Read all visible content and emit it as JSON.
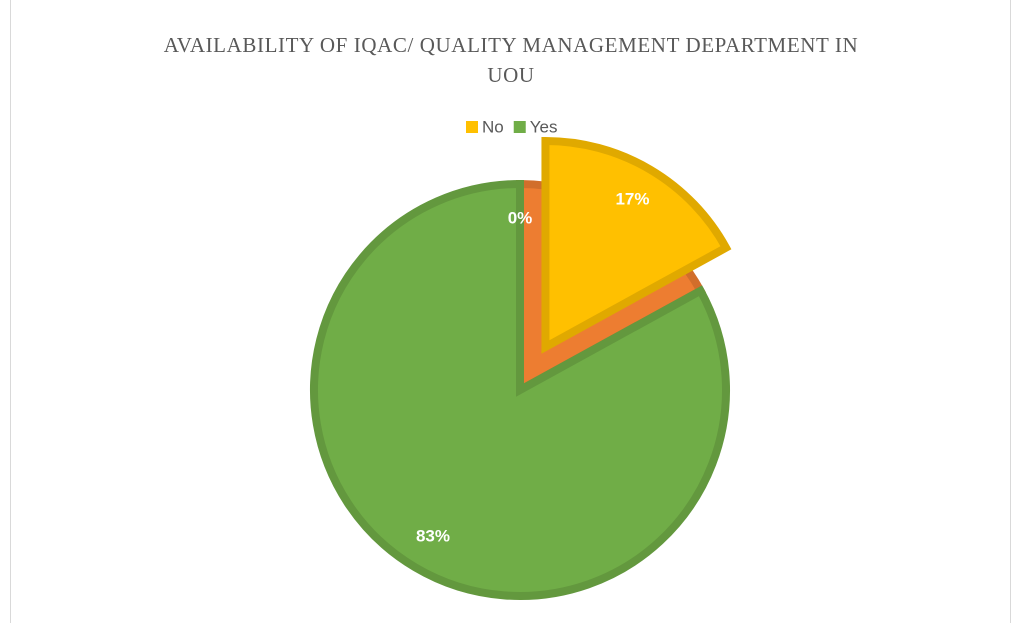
{
  "chart_data": {
    "type": "pie",
    "title": "AVAILABILITY OF IQAC/ QUALITY MANAGEMENT DEPARTMENT IN UOU",
    "categories": [
      "No",
      "Yes",
      null
    ],
    "values": [
      17,
      83,
      0
    ],
    "value_labels": [
      "17%",
      "83%",
      "0%"
    ],
    "colors": [
      "#FFC000",
      "#70AD47",
      "#ED7D31"
    ],
    "explode": [
      0
    ],
    "legend": "top"
  }
}
